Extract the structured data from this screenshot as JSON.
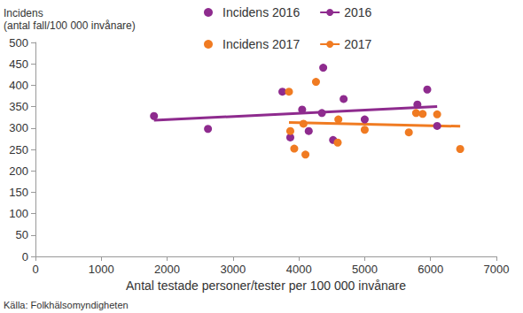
{
  "chart_data": {
    "type": "scatter",
    "y_label": "Incidens\n(antal fall/100 000 invånare)",
    "x_label": "Antal testade personer/tester per 100 000 invånare",
    "source": "Källa: Folkhälsomyndigheten",
    "xlim": [
      0,
      7000
    ],
    "xticks": [
      0,
      1000,
      2000,
      3000,
      4000,
      5000,
      6000,
      7000
    ],
    "ylim": [
      0,
      500
    ],
    "yticks": [
      0,
      50,
      100,
      150,
      200,
      250,
      300,
      350,
      400,
      450,
      500
    ],
    "grid": false,
    "legend": "top",
    "series": [
      {
        "name": "Incidens 2016",
        "type": "scatter",
        "marker": "circle",
        "color": "#8e2b8e",
        "x": [
          1800,
          2620,
          3750,
          3870,
          4050,
          4150,
          4350,
          4370,
          4520,
          4680,
          5000,
          5800,
          5950,
          6100
        ],
        "values": [
          328,
          298,
          385,
          278,
          343,
          293,
          335,
          441,
          272,
          368,
          320,
          355,
          390,
          305
        ]
      },
      {
        "name": "2016",
        "type": "line",
        "line_style": "solid",
        "color": "#8e2b8e",
        "x": [
          1800,
          6100
        ],
        "values": [
          318,
          350
        ]
      },
      {
        "name": "Incidens 2017",
        "type": "scatter",
        "marker": "circle",
        "color": "#f07b22",
        "x": [
          3850,
          3870,
          3930,
          4070,
          4100,
          4260,
          4600,
          4590,
          5000,
          5670,
          5780,
          5880,
          6100,
          6450
        ],
        "values": [
          385,
          293,
          252,
          310,
          238,
          408,
          320,
          266,
          296,
          290,
          335,
          333,
          332,
          251
        ]
      },
      {
        "name": "2017",
        "type": "line",
        "line_style": "solid",
        "color": "#f07b22",
        "x": [
          3850,
          6450
        ],
        "values": [
          313,
          304
        ]
      }
    ]
  }
}
